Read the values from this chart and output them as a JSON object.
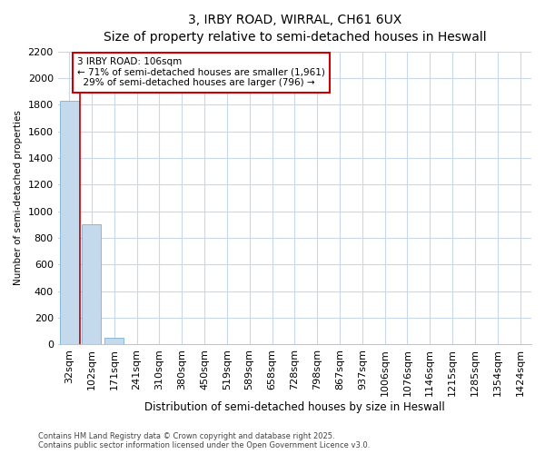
{
  "title_line1": "3, IRBY ROAD, WIRRAL, CH61 6UX",
  "title_line2": "Size of property relative to semi-detached houses in Heswall",
  "xlabel": "Distribution of semi-detached houses by size in Heswall",
  "ylabel": "Number of semi-detached properties",
  "categories": [
    "32sqm",
    "102sqm",
    "171sqm",
    "241sqm",
    "310sqm",
    "380sqm",
    "450sqm",
    "519sqm",
    "589sqm",
    "658sqm",
    "728sqm",
    "798sqm",
    "867sqm",
    "937sqm",
    "1006sqm",
    "1076sqm",
    "1146sqm",
    "1215sqm",
    "1285sqm",
    "1354sqm",
    "1424sqm"
  ],
  "values": [
    1830,
    900,
    50,
    5,
    1,
    0,
    0,
    0,
    0,
    0,
    0,
    0,
    0,
    0,
    0,
    0,
    0,
    0,
    0,
    0,
    0
  ],
  "bar_color": "#c5d9ed",
  "bar_edge_color": "#7ab0d4",
  "grid_color": "#c8d8ea",
  "annotation_text": "3 IRBY ROAD: 106sqm\n← 71% of semi-detached houses are smaller (1,961)\n  29% of semi-detached houses are larger (796) →",
  "annotation_box_color": "#ffffff",
  "annotation_box_edge": "#cc0000",
  "ylim": [
    0,
    2200
  ],
  "yticks": [
    0,
    200,
    400,
    600,
    800,
    1000,
    1200,
    1400,
    1600,
    1800,
    2000,
    2200
  ],
  "footer": "Contains HM Land Registry data © Crown copyright and database right 2025.\nContains public sector information licensed under the Open Government Licence v3.0.",
  "fig_background_color": "#ffffff",
  "plot_background_color": "#ffffff"
}
